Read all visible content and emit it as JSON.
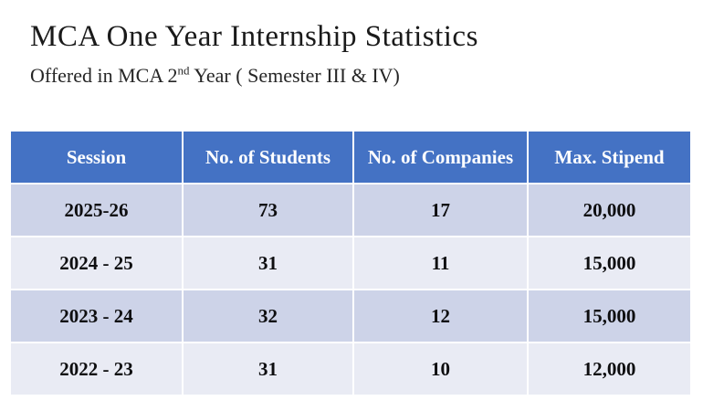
{
  "slide": {
    "title": "MCA One Year Internship Statistics",
    "subtitle": {
      "prefix": "Offered in MCA 2",
      "superscript": "nd",
      "suffix": " Year ( Semester III & IV)"
    }
  },
  "table": {
    "headers": [
      "Session",
      "No. of Students",
      "No. of Companies",
      "Max. Stipend"
    ],
    "rows": [
      {
        "cells": [
          "2025-26",
          "73",
          "17",
          "20,000"
        ]
      },
      {
        "cells": [
          "2024 - 25",
          "31",
          "11",
          "15,000"
        ]
      },
      {
        "cells": [
          "2023 - 24",
          "32",
          "12",
          "15,000"
        ]
      },
      {
        "cells": [
          "2022 - 23",
          "31",
          "10",
          "12,000"
        ]
      }
    ],
    "colors": {
      "header_bg": "#4472C4",
      "header_text": "#FFFFFF",
      "band_dark": "#CDD3E8",
      "band_light": "#E9EBF4",
      "cell_text": "#0E0E10",
      "separator": "#FFFFFF"
    }
  },
  "chart_data": {
    "type": "table",
    "title": "MCA One Year Internship Statistics",
    "subtitle": "Offered in MCA 2nd Year ( Semester III & IV)",
    "columns": [
      "Session",
      "No. of Students",
      "No. of Companies",
      "Max. Stipend"
    ],
    "rows": [
      [
        "2025-26",
        73,
        17,
        20000
      ],
      [
        "2024 - 25",
        31,
        11,
        15000
      ],
      [
        "2023 - 24",
        32,
        12,
        15000
      ],
      [
        "2022 - 23",
        31,
        10,
        12000
      ]
    ]
  }
}
